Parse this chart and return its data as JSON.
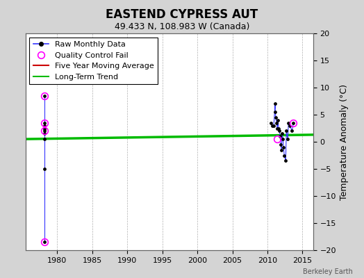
{
  "title": "EASTEND CYPRESS AUT",
  "subtitle": "49.433 N, 108.983 W (Canada)",
  "ylabel_right": "Temperature Anomaly (°C)",
  "watermark": "Berkeley Earth",
  "xlim": [
    1975.5,
    2016.5
  ],
  "ylim": [
    -20,
    20
  ],
  "xticks": [
    1980,
    1985,
    1990,
    1995,
    2000,
    2005,
    2010,
    2015
  ],
  "yticks": [
    -20,
    -15,
    -10,
    -5,
    0,
    5,
    10,
    15,
    20
  ],
  "background_color": "#d4d4d4",
  "plot_bg_color": "#ffffff",
  "grid_color": "#b0b0b0",
  "raw_data_1978": {
    "x": [
      1978.25,
      1978.25,
      1978.25,
      1978.25,
      1978.25,
      1978.25,
      1978.25,
      1978.25,
      1978.25
    ],
    "y": [
      8.5,
      3.5,
      3.0,
      2.5,
      2.0,
      1.5,
      0.5,
      -5.0,
      -18.5
    ]
  },
  "raw_data_2010s": {
    "x": [
      2010.5,
      2010.7,
      2010.9,
      2011.1,
      2011.1,
      2011.2,
      2011.3,
      2011.4,
      2011.5,
      2011.6,
      2011.7,
      2011.8,
      2011.9,
      2012.0,
      2012.1,
      2012.2,
      2012.3,
      2012.4,
      2012.6,
      2012.7,
      2012.9,
      2013.0,
      2013.2,
      2013.5,
      2013.7
    ],
    "y": [
      3.5,
      3.0,
      3.0,
      7.0,
      5.5,
      4.5,
      3.5,
      2.5,
      4.0,
      2.5,
      2.0,
      1.0,
      -0.5,
      -1.5,
      1.5,
      0.5,
      -1.0,
      -2.5,
      -3.5,
      2.0,
      0.5,
      3.5,
      3.0,
      2.0,
      3.5
    ]
  },
  "qc_fail_1978": {
    "x": [
      1978.25,
      1978.25,
      1978.25,
      1978.25
    ],
    "y": [
      8.5,
      3.5,
      2.0,
      -18.5
    ]
  },
  "qc_fail_2010s": {
    "x": [
      2011.4,
      2013.7
    ],
    "y": [
      0.5,
      3.5
    ]
  },
  "long_term_trend": {
    "x": [
      1975.5,
      2016.5
    ],
    "y": [
      0.5,
      1.3
    ]
  },
  "raw_color": "#3333ff",
  "qc_color": "#ff00ff",
  "five_yr_color": "#cc0000",
  "trend_color": "#00bb00",
  "trend_linewidth": 2.5,
  "raw_linewidth": 0.8,
  "dot_size": 6,
  "title_fontsize": 12,
  "subtitle_fontsize": 9,
  "tick_fontsize": 8,
  "legend_fontsize": 8,
  "ylabel_fontsize": 9
}
